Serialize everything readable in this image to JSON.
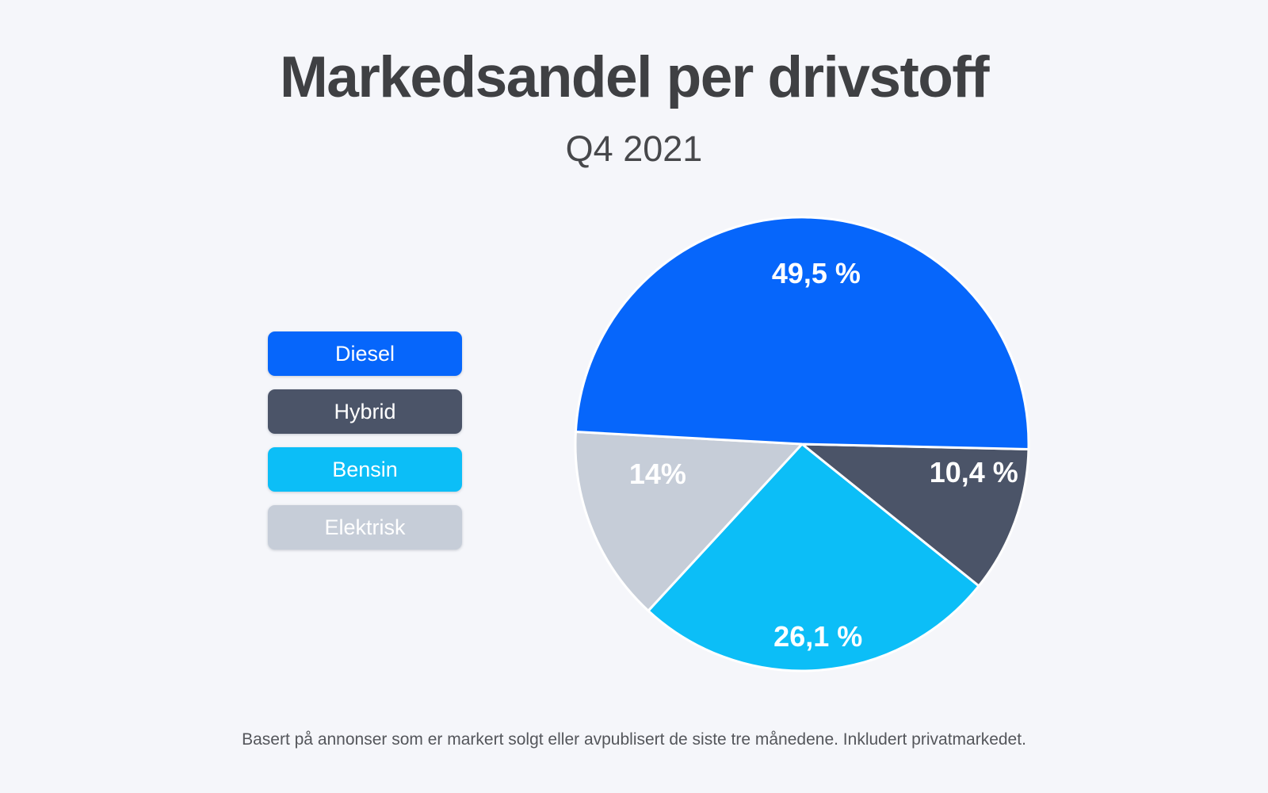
{
  "page": {
    "title": "Markedsandel per drivstoff",
    "subtitle": "Q4 2021",
    "footer": "Basert på annonser som er markert solgt eller avpublisert de siste tre månedene. Inkludert privatmarkedet."
  },
  "colors": {
    "background": "#f5f6fa",
    "title_text": "#3f4043",
    "pie_label_text": "#ffffff",
    "slice_separator": "#ffffff",
    "diesel": "#0666fb",
    "hybrid": "#4b5468",
    "bensin": "#0cbef7",
    "elektrisk": "#c6cdd8"
  },
  "chart_data": {
    "type": "pie",
    "title": "Markedsandel per drivstoff",
    "subtitle": "Q4 2021",
    "unit": "%",
    "slices": [
      {
        "label": "Diesel",
        "value": 49.5,
        "display": "49,5 %",
        "color": "#0666fb"
      },
      {
        "label": "Hybrid",
        "value": 10.4,
        "display": "10,4 %",
        "color": "#4b5468"
      },
      {
        "label": "Bensin",
        "value": 26.1,
        "display": "26,1 %",
        "color": "#0cbef7"
      },
      {
        "label": "Elektrisk",
        "value": 14,
        "display": "14%",
        "color": "#c6cdd8"
      }
    ],
    "legend_position": "left",
    "draw_order_clockwise_from_3oclock": [
      "Hybrid",
      "Bensin",
      "Elektrisk",
      "Diesel"
    ],
    "start_angle_deg": 1.3
  }
}
